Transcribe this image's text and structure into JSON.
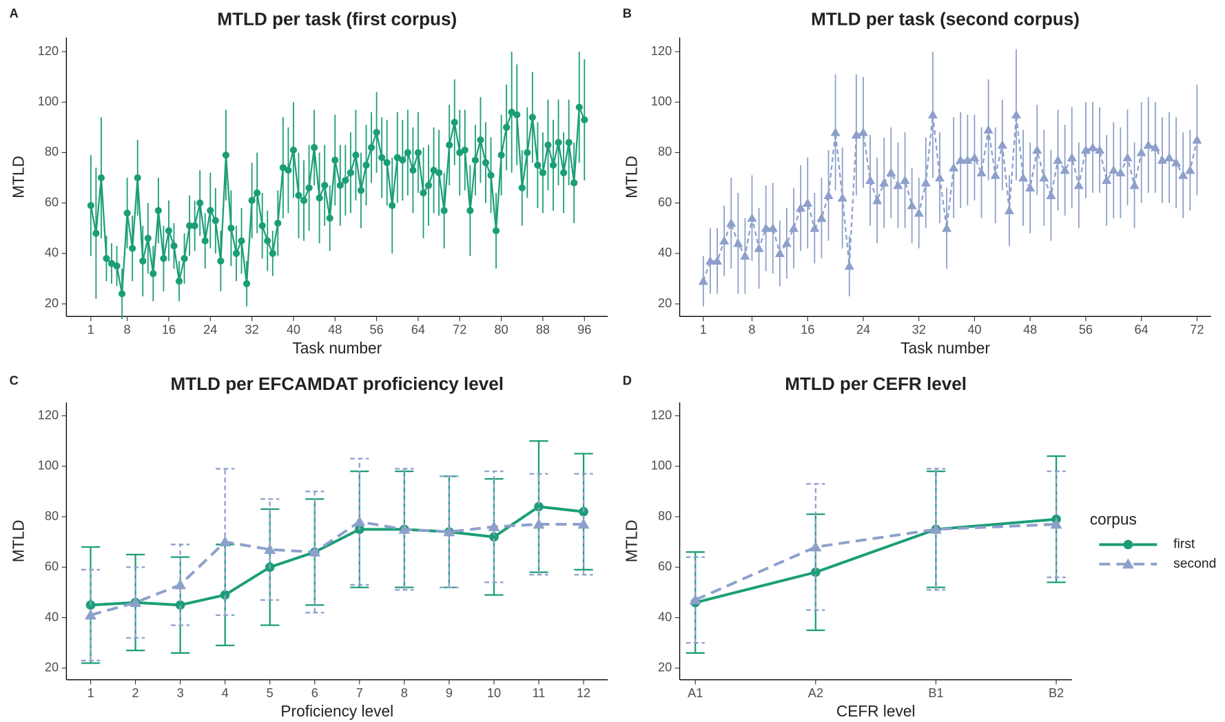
{
  "chart_data": [
    {
      "type": "line",
      "panel_label": "A",
      "title": "MTLD per task (first corpus)",
      "x_label": "Task number",
      "y_label": "MTLD",
      "x": [
        1,
        2,
        3,
        4,
        5,
        6,
        7,
        8,
        9,
        10,
        11,
        12,
        13,
        14,
        15,
        16,
        17,
        18,
        19,
        20,
        21,
        22,
        23,
        24,
        25,
        26,
        27,
        28,
        29,
        30,
        31,
        32,
        33,
        34,
        35,
        36,
        37,
        38,
        39,
        40,
        41,
        42,
        43,
        44,
        45,
        46,
        47,
        48,
        49,
        50,
        51,
        52,
        53,
        54,
        55,
        56,
        57,
        58,
        59,
        60,
        61,
        62,
        63,
        64,
        65,
        66,
        67,
        68,
        69,
        70,
        71,
        72,
        73,
        74,
        75,
        76,
        77,
        78,
        79,
        80,
        81,
        82,
        83,
        84,
        85,
        86,
        87,
        88,
        89,
        90,
        91,
        92,
        93,
        94,
        95,
        96
      ],
      "xlim": [
        -3.7,
        100.5
      ],
      "xticks": [
        1,
        8,
        16,
        24,
        32,
        40,
        48,
        56,
        64,
        72,
        80,
        88,
        96
      ],
      "ylim": [
        15,
        125.6
      ],
      "yticks": [
        20,
        40,
        60,
        80,
        100,
        120
      ],
      "error_caps": false,
      "series": [
        {
          "color": "#1b9e77",
          "line_style": "solid",
          "marker": "circle",
          "values": [
            59,
            48,
            70,
            38,
            36,
            35,
            24,
            56,
            42,
            70,
            37,
            46,
            32,
            57,
            38,
            49,
            43,
            29,
            38,
            51,
            51,
            60,
            45,
            57,
            53,
            37,
            79,
            50,
            40,
            45,
            28,
            61,
            64,
            51,
            45,
            40,
            52,
            74,
            73,
            81,
            63,
            61,
            66,
            82,
            62,
            67,
            54,
            77,
            67,
            69,
            72,
            79,
            65,
            75,
            82,
            88,
            78,
            76,
            59,
            78,
            77,
            80,
            73,
            80,
            64,
            67,
            73,
            72,
            57,
            83,
            92,
            80,
            81,
            57,
            77,
            85,
            76,
            71,
            49,
            79,
            90,
            96,
            95,
            66,
            80,
            94,
            75,
            72,
            83,
            75,
            84,
            72,
            84,
            68,
            98,
            93
          ],
          "errors": [
            20,
            26,
            24,
            9,
            8,
            8,
            10,
            14,
            13,
            15,
            14,
            14,
            11,
            13,
            13,
            12,
            9,
            8,
            10,
            12,
            10,
            13,
            11,
            15,
            13,
            12,
            18,
            15,
            11,
            13,
            9,
            15,
            16,
            13,
            12,
            9,
            13,
            20,
            17,
            19,
            17,
            16,
            17,
            15,
            18,
            16,
            13,
            18,
            16,
            14,
            16,
            18,
            15,
            16,
            14,
            16,
            16,
            17,
            19,
            18,
            16,
            17,
            17,
            16,
            18,
            16,
            17,
            17,
            15,
            16,
            17,
            17,
            16,
            18,
            14,
            17,
            16,
            15,
            15,
            16,
            17,
            24,
            20,
            15,
            18,
            18,
            17,
            16,
            18,
            18,
            17,
            16,
            17,
            16,
            22,
            24
          ]
        }
      ]
    },
    {
      "type": "line",
      "panel_label": "B",
      "title": "MTLD per task (second corpus)",
      "x_label": "Task number",
      "y_label": "MTLD",
      "x": [
        1,
        2,
        3,
        4,
        5,
        6,
        7,
        8,
        9,
        10,
        11,
        12,
        13,
        14,
        15,
        16,
        17,
        18,
        19,
        20,
        21,
        22,
        23,
        24,
        25,
        26,
        27,
        28,
        29,
        30,
        31,
        32,
        33,
        34,
        35,
        36,
        37,
        38,
        39,
        40,
        41,
        42,
        43,
        44,
        45,
        46,
        47,
        48,
        49,
        50,
        51,
        52,
        53,
        54,
        55,
        56,
        57,
        58,
        59,
        60,
        61,
        62,
        63,
        64,
        65,
        66,
        67,
        68,
        69,
        70,
        71,
        72
      ],
      "xlim": [
        -2.4,
        74
      ],
      "xticks": [
        1,
        8,
        16,
        24,
        32,
        40,
        48,
        56,
        64,
        72
      ],
      "ylim": [
        15,
        125.6
      ],
      "yticks": [
        20,
        40,
        60,
        80,
        100,
        120
      ],
      "error_caps": false,
      "series": [
        {
          "color": "#8da0cb",
          "line_style": "dashed",
          "marker": "triangle",
          "values": [
            29,
            37,
            37,
            45,
            52,
            44,
            39,
            54,
            42,
            50,
            50,
            40,
            44,
            50,
            58,
            60,
            50,
            54,
            63,
            88,
            62,
            35,
            87,
            88,
            69,
            61,
            68,
            72,
            67,
            69,
            59,
            56,
            68,
            95,
            70,
            50,
            74,
            77,
            77,
            78,
            72,
            89,
            71,
            83,
            57,
            95,
            70,
            66,
            81,
            70,
            63,
            77,
            73,
            78,
            67,
            81,
            82,
            81,
            69,
            73,
            72,
            78,
            67,
            80,
            83,
            82,
            77,
            78,
            76,
            71,
            73,
            85
          ],
          "errors": [
            10,
            13,
            13,
            14,
            18,
            20,
            15,
            17,
            16,
            17,
            18,
            13,
            14,
            16,
            17,
            18,
            14,
            16,
            18,
            23,
            20,
            12,
            24,
            22,
            18,
            17,
            18,
            18,
            17,
            19,
            15,
            14,
            18,
            25,
            18,
            16,
            20,
            19,
            18,
            17,
            18,
            20,
            19,
            18,
            14,
            26,
            19,
            18,
            18,
            19,
            18,
            20,
            18,
            20,
            17,
            19,
            18,
            17,
            18,
            19,
            18,
            19,
            17,
            20,
            19,
            18,
            17,
            18,
            18,
            17,
            16,
            22
          ]
        }
      ]
    },
    {
      "type": "line",
      "panel_label": "C",
      "title": "MTLD per EFCAMDAT proficiency level",
      "x_label": "Proficiency level",
      "y_label": "MTLD",
      "categories": [
        "1",
        "2",
        "3",
        "4",
        "5",
        "6",
        "7",
        "8",
        "9",
        "10",
        "11",
        "12"
      ],
      "ylim": [
        15.4,
        125.3
      ],
      "yticks": [
        20,
        40,
        60,
        80,
        100,
        120
      ],
      "error_caps": true,
      "series": [
        {
          "name": "first",
          "color": "#1b9e77",
          "line_style": "solid",
          "marker": "circle",
          "values": [
            45,
            46,
            45,
            49,
            60,
            66,
            75,
            75,
            74,
            72,
            84,
            82
          ],
          "errors": [
            23,
            19,
            19,
            20,
            23,
            21,
            23,
            23,
            22,
            23,
            26,
            23
          ]
        },
        {
          "name": "second",
          "color": "#8da0cb",
          "line_style": "dashed",
          "marker": "triangle",
          "values": [
            41,
            46,
            53,
            70,
            67,
            66,
            78,
            75,
            74,
            76,
            77,
            77
          ],
          "errors": [
            18,
            14,
            16,
            29,
            20,
            24,
            25,
            24,
            22,
            22,
            20,
            20
          ]
        }
      ]
    },
    {
      "type": "line",
      "panel_label": "D",
      "title": "MTLD per CEFR level",
      "x_label": "CEFR level",
      "y_label": "MTLD",
      "categories": [
        "A1",
        "A2",
        "B1",
        "B2"
      ],
      "ylim": [
        15.4,
        125.3
      ],
      "yticks": [
        20,
        40,
        60,
        80,
        100,
        120
      ],
      "error_caps": true,
      "legend": "right",
      "legend_title": "corpus",
      "series": [
        {
          "name": "first",
          "color": "#1b9e77",
          "line_style": "solid",
          "marker": "circle",
          "values": [
            46,
            58,
            75,
            79
          ],
          "errors": [
            20,
            23,
            23,
            25
          ]
        },
        {
          "name": "second",
          "color": "#8da0cb",
          "line_style": "dashed",
          "marker": "triangle",
          "values": [
            47,
            68,
            75,
            77
          ],
          "errors": [
            17,
            25,
            24,
            21
          ]
        }
      ]
    }
  ]
}
